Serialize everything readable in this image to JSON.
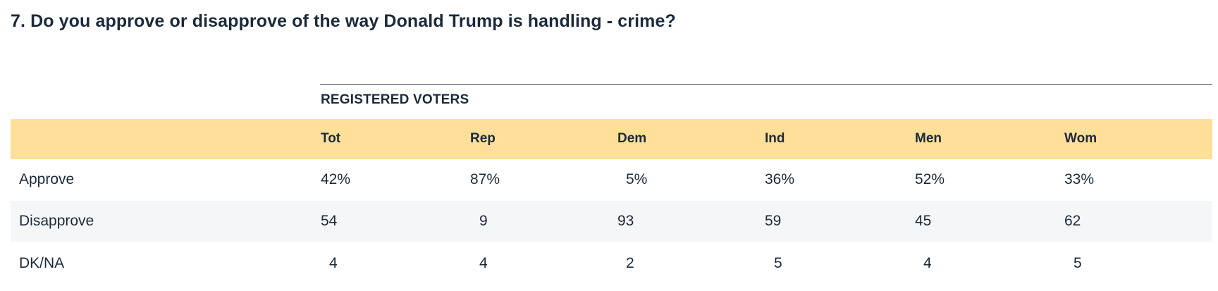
{
  "question": {
    "title": "7. Do you approve or disapprove of the way Donald Trump is handling - crime?"
  },
  "group": {
    "label": "REGISTERED VOTERS"
  },
  "columns": [
    "Tot",
    "Rep",
    "Dem",
    "Ind",
    "Men",
    "Wom"
  ],
  "rows": [
    {
      "label": "Approve",
      "values": [
        "42%",
        "87%",
        " 5%",
        "36%",
        "52%",
        "33%"
      ]
    },
    {
      "label": "Disapprove",
      "values": [
        "54",
        " 9",
        "93",
        "59",
        "45",
        "62"
      ]
    },
    {
      "label": "DK/NA",
      "values": [
        " 4",
        " 4",
        " 2",
        " 5",
        " 4",
        " 5"
      ]
    }
  ]
}
